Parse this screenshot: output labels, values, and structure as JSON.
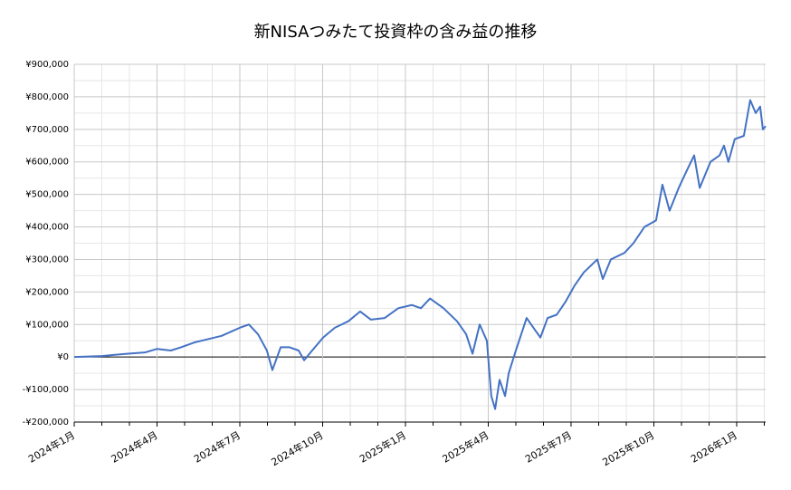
{
  "chart_data": {
    "type": "line",
    "title": "新NISAつみたて投資枠の含み益の推移",
    "x": [
      0,
      1,
      1.9,
      2.56,
      3,
      3.5,
      3.87,
      4.36,
      4.85,
      5.34,
      6,
      6.33,
      6.66,
      6.98,
      7.18,
      7.48,
      7.8,
      8.13,
      8.33,
      8.62,
      9.02,
      9.44,
      9.93,
      10.36,
      10.75,
      11.25,
      11.74,
      12.23,
      12.56,
      12.89,
      13.38,
      13.87,
      14.2,
      14.43,
      14.69,
      14.95,
      15.11,
      15.25,
      15.41,
      15.61,
      15.74,
      16,
      16.39,
      16.72,
      16.89,
      17.15,
      17.48,
      17.8,
      18.13,
      18.46,
      18.95,
      19.15,
      19.44,
      19.93,
      20.26,
      20.66,
      21.08,
      21.31,
      21.57,
      21.9,
      22.23,
      22.46,
      22.66,
      23.05,
      23.38,
      23.54,
      23.7,
      23.93,
      24.26,
      24.49,
      24.69,
      24.85,
      24.95,
      25.05
    ],
    "series": [
      {
        "name": "含み益",
        "color": "#4472c4",
        "values": [
          0,
          3000,
          10000,
          14000,
          25000,
          20000,
          30000,
          45000,
          55000,
          65000,
          90000,
          100000,
          70000,
          20000,
          -40000,
          30000,
          30000,
          20000,
          -10000,
          20000,
          60000,
          90000,
          110000,
          140000,
          115000,
          120000,
          150000,
          160000,
          150000,
          180000,
          150000,
          110000,
          70000,
          10000,
          100000,
          50000,
          -120000,
          -160000,
          -70000,
          -120000,
          -50000,
          20000,
          120000,
          80000,
          60000,
          120000,
          130000,
          170000,
          220000,
          260000,
          300000,
          240000,
          300000,
          320000,
          350000,
          400000,
          420000,
          530000,
          450000,
          520000,
          580000,
          620000,
          520000,
          600000,
          620000,
          650000,
          600000,
          670000,
          680000,
          790000,
          750000,
          770000,
          700000,
          710000
        ]
      }
    ],
    "xlim": [
      0,
      25.05
    ],
    "xticks": [
      {
        "value": 0,
        "label": "2024年1月"
      },
      {
        "value": 3,
        "label": "2024年4月"
      },
      {
        "value": 6,
        "label": "2024年7月"
      },
      {
        "value": 9,
        "label": "2024年10月"
      },
      {
        "value": 12,
        "label": "2025年1月"
      },
      {
        "value": 15,
        "label": "2025年4月"
      },
      {
        "value": 18,
        "label": "2025年7月"
      },
      {
        "value": 21,
        "label": "2025年10月"
      },
      {
        "value": 24,
        "label": "2026年1月"
      }
    ],
    "xminorticks": [
      1,
      2,
      4,
      5,
      7,
      8,
      10,
      11,
      13,
      14,
      16,
      17,
      19,
      20,
      22,
      23,
      25
    ],
    "ylim": [
      -200000,
      900000
    ],
    "yticks": [
      {
        "value": -200000,
        "label": "-¥200,000"
      },
      {
        "value": -100000,
        "label": "-¥100,000"
      },
      {
        "value": 0,
        "label": "¥0"
      },
      {
        "value": 100000,
        "label": "¥100,000"
      },
      {
        "value": 200000,
        "label": "¥200,000"
      },
      {
        "value": 300000,
        "label": "¥300,000"
      },
      {
        "value": 400000,
        "label": "¥400,000"
      },
      {
        "value": 500000,
        "label": "¥500,000"
      },
      {
        "value": 600000,
        "label": "¥600,000"
      },
      {
        "value": 700000,
        "label": "¥700,000"
      },
      {
        "value": 800000,
        "label": "¥800,000"
      },
      {
        "value": 900000,
        "label": "¥900,000"
      }
    ],
    "yminorticks": [
      -150000,
      -50000,
      50000,
      150000,
      250000,
      350000,
      450000,
      550000,
      650000,
      750000,
      850000
    ],
    "grid": true
  }
}
